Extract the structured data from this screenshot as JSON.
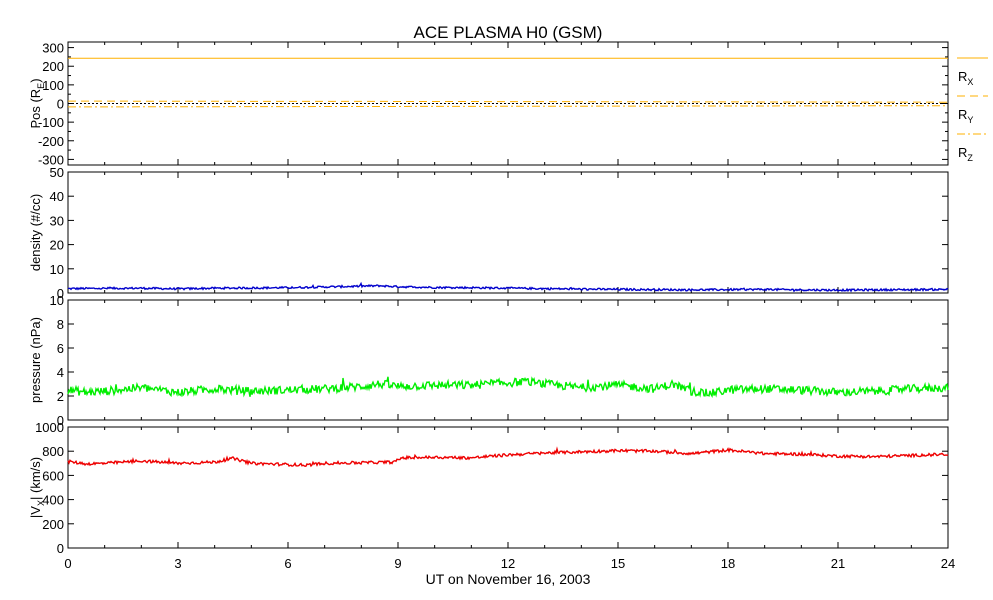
{
  "title": "ACE PLASMA H0 (GSM)",
  "x_axis": {
    "label": "UT on November 16, 2003",
    "range": [
      0,
      24
    ],
    "ticks": [
      "0",
      "3",
      "6",
      "9",
      "12",
      "15",
      "18",
      "21",
      "24"
    ]
  },
  "panels": [
    {
      "id": "pos",
      "ylabel_main": "Pos (R",
      "ylabel_sub": "E",
      "ylabel_end": ")",
      "ylim": [
        -330,
        330
      ],
      "ticks": [
        300,
        200,
        100,
        0,
        -100,
        -200,
        -300
      ],
      "legend": [
        {
          "text": "R",
          "sub": "X",
          "color": "#ffb000",
          "dash": "solid"
        },
        {
          "text": "R",
          "sub": "Y",
          "color": "#ffb000",
          "dash": "dashed"
        },
        {
          "text": "R",
          "sub": "Z",
          "color": "#ffb000",
          "dash": "dashdot"
        }
      ]
    },
    {
      "id": "density",
      "ylabel": "density (#/cc)",
      "ylim": [
        0,
        50
      ],
      "ticks": [
        50,
        40,
        30,
        20,
        10,
        0
      ]
    },
    {
      "id": "pressure",
      "ylabel": "pressure (nPa)",
      "ylim": [
        0,
        10
      ],
      "ticks": [
        10,
        8,
        6,
        4,
        2,
        0
      ]
    },
    {
      "id": "vx",
      "ylabel_pre": "|V",
      "ylabel_sub": "X",
      "ylabel_end": "| (km/s)",
      "ylim": [
        0,
        1000
      ],
      "ticks": [
        1000,
        800,
        600,
        400,
        200,
        0
      ]
    }
  ],
  "chart_data": {
    "type": "line",
    "title": "ACE PLASMA H0 (GSM)",
    "xlabel": "UT on November 16, 2003",
    "xlim": [
      0,
      24
    ],
    "series": [
      {
        "name": "RX",
        "panel": "pos",
        "color": "#ffb000",
        "dash": "solid",
        "x": [
          0,
          24
        ],
        "y": [
          243,
          243
        ]
      },
      {
        "name": "RY",
        "panel": "pos",
        "color": "#ffb000",
        "dash": "dashed",
        "x": [
          0,
          4,
          8,
          12,
          16,
          20,
          24
        ],
        "y": [
          13,
          12,
          11,
          10,
          9,
          8,
          7
        ]
      },
      {
        "name": "RZ",
        "panel": "pos",
        "color": "#ffb000",
        "dash": "dashdot",
        "x": [
          0,
          4,
          8,
          12,
          16,
          20,
          24
        ],
        "y": [
          -18,
          -17,
          -16,
          -15,
          -14,
          -13,
          -12
        ]
      },
      {
        "panel": "pos",
        "color": "#000000",
        "dash": "dotted",
        "x": [
          0,
          24
        ],
        "y": [
          0,
          0
        ]
      },
      {
        "panel": "density",
        "color": "#0000cc",
        "noise": 0.4,
        "x": [
          0,
          1,
          2,
          3,
          4,
          5,
          6,
          7,
          8,
          8.5,
          9,
          10,
          11,
          12,
          13,
          14,
          15,
          16,
          17,
          18,
          19,
          20,
          21,
          22,
          23,
          24
        ],
        "y": [
          1.8,
          1.9,
          2.0,
          1.7,
          2.0,
          2.1,
          2.2,
          2.5,
          2.8,
          3.0,
          2.6,
          2.3,
          2.2,
          2.0,
          1.8,
          1.6,
          1.5,
          1.4,
          1.3,
          1.4,
          1.5,
          1.3,
          1.2,
          1.3,
          1.4,
          1.5
        ]
      },
      {
        "panel": "pressure",
        "color": "#00ee00",
        "noise": 0.35,
        "x": [
          0,
          0.5,
          1,
          2,
          3,
          4,
          5,
          6,
          7,
          8,
          8.5,
          9,
          10,
          11,
          12,
          12.5,
          13,
          14,
          15,
          16,
          16.5,
          17,
          17.5,
          18,
          19,
          20,
          21,
          22,
          23,
          24
        ],
        "y": [
          2.5,
          2.3,
          2.4,
          2.7,
          2.3,
          2.6,
          2.4,
          2.5,
          2.6,
          2.8,
          3.0,
          2.8,
          2.9,
          2.9,
          3.1,
          3.2,
          3.0,
          2.7,
          2.9,
          2.6,
          3.0,
          2.4,
          2.2,
          2.5,
          2.6,
          2.5,
          2.3,
          2.4,
          2.6,
          2.7
        ]
      },
      {
        "panel": "vx",
        "color": "#ee0000",
        "noise": 12,
        "x": [
          0,
          0.5,
          1,
          2,
          3,
          4,
          4.5,
          5,
          6,
          6.5,
          7,
          8,
          8.9,
          9.1,
          10,
          11,
          12,
          13,
          14,
          15,
          16,
          17,
          17.5,
          18,
          18.5,
          19,
          20,
          21,
          22,
          23,
          24
        ],
        "y": [
          715,
          695,
          700,
          720,
          700,
          710,
          740,
          700,
          690,
          685,
          700,
          705,
          710,
          745,
          750,
          745,
          770,
          785,
          795,
          805,
          800,
          780,
          795,
          810,
          795,
          780,
          775,
          760,
          755,
          765,
          775
        ]
      }
    ]
  }
}
